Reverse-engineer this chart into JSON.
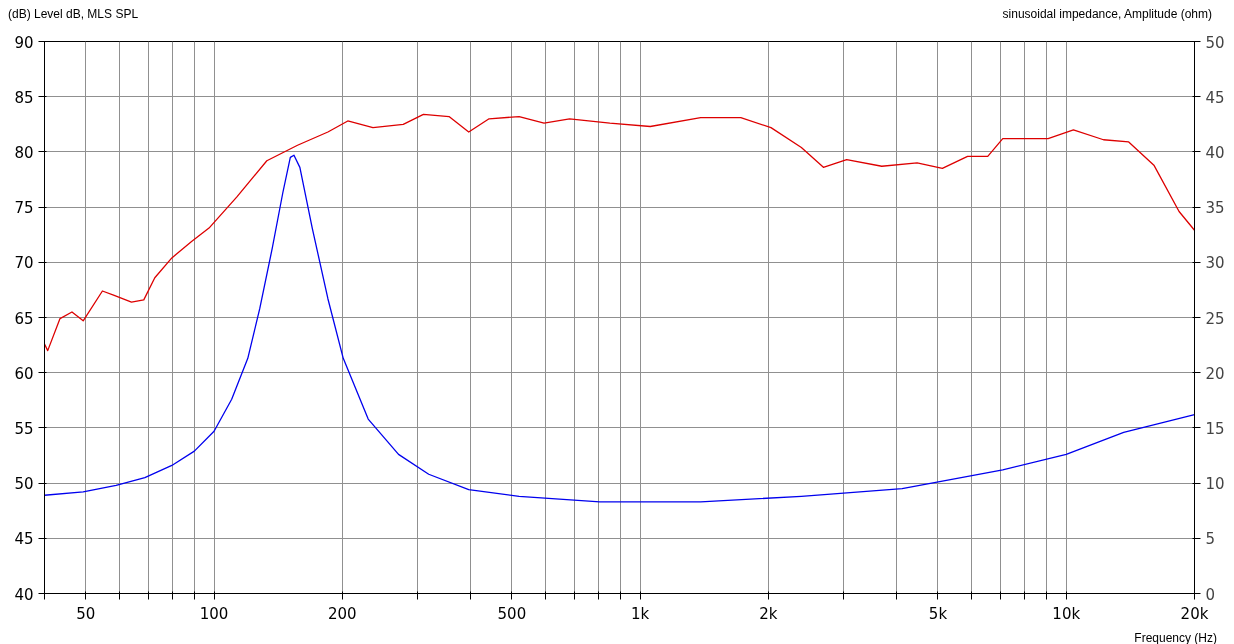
{
  "chart_data": {
    "type": "line",
    "ylabel": "(dB) Level dB, MLS SPL",
    "y2label": "sinusoidal impedance, Amplitude (ohm)",
    "xlabel": "Frequency (Hz)",
    "log": "x",
    "grid": true,
    "marker": "none",
    "line_style": "solid",
    "xlim": [
      40,
      20000
    ],
    "ylim": [
      40,
      90
    ],
    "y2lim": [
      0,
      50
    ],
    "xticks": [
      {
        "value": 40,
        "label": null
      },
      {
        "value": 50,
        "label": "50"
      },
      {
        "value": 60,
        "label": null
      },
      {
        "value": 70,
        "label": null
      },
      {
        "value": 80,
        "label": null
      },
      {
        "value": 90,
        "label": null
      },
      100,
      200,
      {
        "value": 300,
        "label": null
      },
      {
        "value": 400,
        "label": null
      },
      500,
      {
        "value": 600,
        "label": null
      },
      {
        "value": 700,
        "label": null
      },
      {
        "value": 800,
        "label": null
      },
      {
        "value": 900,
        "label": null
      },
      {
        "value": 1000,
        "label": "1k"
      },
      {
        "value": 2000,
        "label": "2k"
      },
      {
        "value": 3000,
        "label": null
      },
      {
        "value": 4000,
        "label": null
      },
      {
        "value": 5000,
        "label": "5k"
      },
      {
        "value": 6000,
        "label": null
      },
      {
        "value": 7000,
        "label": null
      },
      {
        "value": 8000,
        "label": null
      },
      {
        "value": 9000,
        "label": null
      },
      {
        "value": 10000,
        "label": "10k"
      },
      {
        "value": 20000,
        "label": "20k"
      }
    ],
    "yticks": [
      40,
      45,
      50,
      55,
      60,
      65,
      70,
      75,
      80,
      85,
      90
    ],
    "y2ticks": [
      0,
      5,
      10,
      15,
      20,
      25,
      30,
      35,
      40,
      45,
      50
    ],
    "series": [
      {
        "color": "#dd0000",
        "x": [
          40,
          40.7,
          43.5,
          46.4,
          49.3,
          54.7,
          58.3,
          64,
          68.4,
          72.6,
          79.6,
          88.7,
          97.3,
          113,
          133,
          157,
          185,
          206,
          236,
          278,
          310,
          356,
          396,
          442,
          520,
          595,
          683,
          849,
          1056,
          1387,
          1723,
          2028,
          2390,
          2692,
          3053,
          3690,
          4467,
          5120,
          5867,
          6543,
          7096,
          9066,
          10396,
          12229,
          14016,
          16060,
          18400,
          20000
        ],
        "values": [
          62.6,
          62.0,
          64.9,
          65.5,
          64.7,
          67.4,
          67.0,
          66.4,
          66.6,
          68.6,
          70.4,
          71.9,
          73.1,
          75.9,
          79.2,
          80.6,
          81.8,
          82.8,
          82.2,
          82.5,
          83.4,
          83.2,
          81.8,
          83.0,
          83.2,
          82.6,
          83.0,
          82.6,
          82.3,
          83.1,
          83.1,
          82.2,
          80.4,
          78.6,
          79.3,
          78.7,
          79.0,
          78.5,
          79.6,
          79.6,
          81.2,
          81.2,
          82.0,
          81.1,
          80.9,
          78.8,
          74.6,
          72.9
        ]
      },
      {
        "color": "#0000ee",
        "axis": "y2",
        "x": [
          40,
          49.3,
          58.9,
          68.8,
          79.6,
          89.9,
          100,
          110,
          120,
          128,
          137,
          145,
          151,
          154,
          159,
          170,
          185,
          201,
          230,
          271,
          319,
          396,
          520,
          804,
          1387,
          2390,
          4120,
          7096,
          10000,
          13640,
          20000
        ],
        "values": [
          8.9,
          9.2,
          9.8,
          10.5,
          11.6,
          12.9,
          14.7,
          17.6,
          21.3,
          25.8,
          31.3,
          36.3,
          39.5,
          39.7,
          38.6,
          33.1,
          26.7,
          21.3,
          15.8,
          12.6,
          10.8,
          9.4,
          8.8,
          8.3,
          8.3,
          8.8,
          9.5,
          11.2,
          12.6,
          14.6,
          16.2
        ]
      }
    ]
  }
}
